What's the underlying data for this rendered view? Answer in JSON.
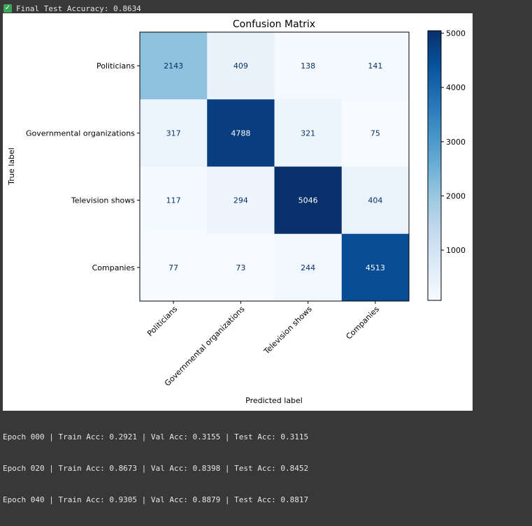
{
  "console": {
    "top_line": "Final Test Accuracy: 0.8634",
    "log_lines": [
      "Epoch 000 | Train Acc: 0.2921 | Val Acc: 0.3155 | Test Acc: 0.3115",
      "Epoch 020 | Train Acc: 0.8673 | Val Acc: 0.8398 | Test Acc: 0.8452",
      "Epoch 040 | Train Acc: 0.9305 | Val Acc: 0.8879 | Test Acc: 0.8817"
    ]
  },
  "colors": {
    "success": "#3aa757",
    "cmap_low": "#f7fbff",
    "cmap_high": "#08306b"
  },
  "chart_data": {
    "type": "heatmap",
    "title": "Confusion Matrix",
    "xlabel": "Predicted label",
    "ylabel": "True label",
    "row_labels": [
      "Politicians",
      "Governmental organizations",
      "Television shows",
      "Companies"
    ],
    "col_labels": [
      "Politicians",
      "Governmental organizations",
      "Television shows",
      "Companies"
    ],
    "values": [
      [
        2143,
        409,
        138,
        141
      ],
      [
        317,
        4788,
        321,
        75
      ],
      [
        117,
        294,
        5046,
        404
      ],
      [
        77,
        73,
        244,
        4513
      ]
    ],
    "colormap": "Blues",
    "colorbar": {
      "ticks": [
        1000,
        2000,
        3000,
        4000,
        5000
      ],
      "range": [
        73,
        5046
      ]
    },
    "grid": false
  }
}
